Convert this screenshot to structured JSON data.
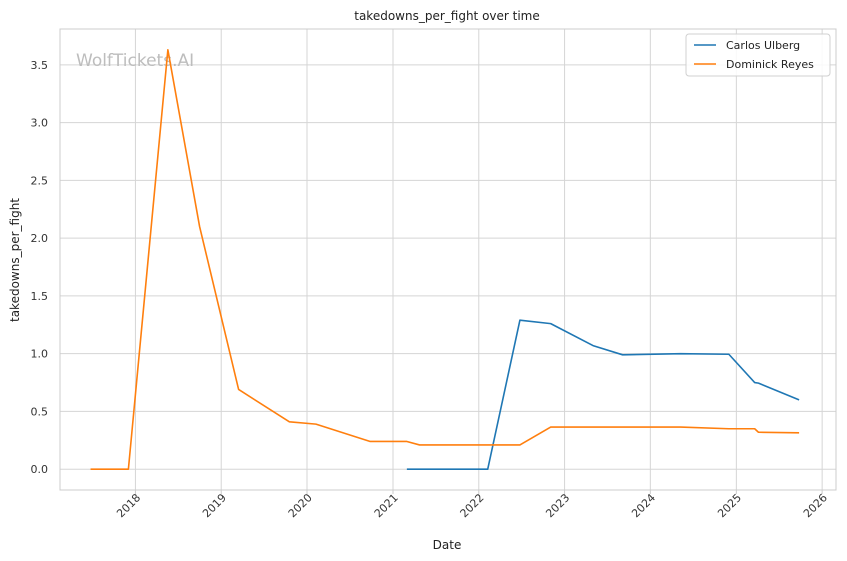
{
  "chart_data": {
    "type": "line",
    "title": "takedowns_per_fight over time",
    "xlabel": "Date",
    "ylabel": "takedowns_per_fight",
    "watermark": "WolfTickets.AI",
    "xlim": [
      "2017-02-14",
      "2026-03-01"
    ],
    "ylim": [
      -0.18,
      3.81
    ],
    "x_ticks": [
      "2018-01-01",
      "2019-01-01",
      "2020-01-01",
      "2021-01-01",
      "2022-01-01",
      "2023-01-01",
      "2024-01-01",
      "2025-01-01",
      "2026-01-01"
    ],
    "x_tick_labels": [
      "2018",
      "2019",
      "2020",
      "2021",
      "2022",
      "2023",
      "2024",
      "2025",
      "2026"
    ],
    "y_ticks": [
      0.0,
      0.5,
      1.0,
      1.5,
      2.0,
      2.5,
      3.0,
      3.5
    ],
    "y_tick_labels": [
      "0.0",
      "0.5",
      "1.0",
      "1.5",
      "2.0",
      "2.5",
      "3.0",
      "3.5"
    ],
    "grid": true,
    "legend_position": "top-right",
    "series": [
      {
        "name": "Carlos Ulberg",
        "color": "#1f77b4",
        "x": [
          "2021-03-01",
          "2022-02-08",
          "2022-06-25",
          "2022-11-03",
          "2023-05-02",
          "2023-09-05",
          "2024-05-09",
          "2024-11-30",
          "2025-03-20",
          "2025-04-05",
          "2025-09-25"
        ],
        "y": [
          0.0,
          0.0,
          1.29,
          1.26,
          1.07,
          0.99,
          1.0,
          0.995,
          0.75,
          0.745,
          0.6
        ]
      },
      {
        "name": "Dominick Reyes",
        "color": "#ff7f0e",
        "x": [
          "2017-06-24",
          "2017-12-02",
          "2018-05-19",
          "2018-10-01",
          "2019-03-16",
          "2019-10-18",
          "2020-02-08",
          "2020-09-26",
          "2021-03-01",
          "2021-04-24",
          "2022-06-25",
          "2022-11-03",
          "2023-05-02",
          "2024-05-09",
          "2024-11-30",
          "2025-03-20",
          "2025-04-05",
          "2025-09-25"
        ],
        "y": [
          0.0,
          0.0,
          3.63,
          2.1,
          0.69,
          0.41,
          0.39,
          0.24,
          0.24,
          0.21,
          0.21,
          0.365,
          0.365,
          0.365,
          0.35,
          0.35,
          0.32,
          0.315
        ]
      }
    ]
  }
}
